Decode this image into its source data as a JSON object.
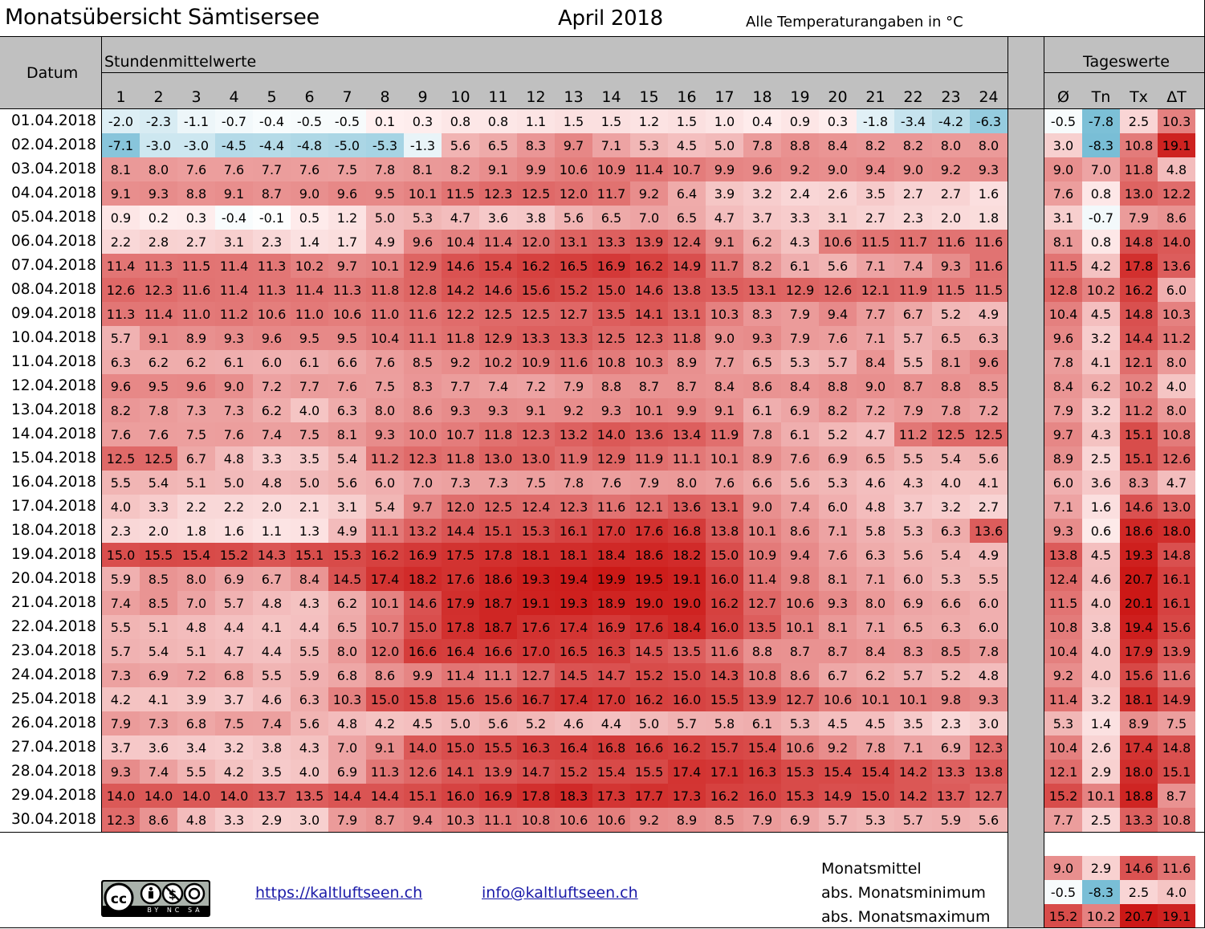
{
  "header": {
    "title": "Monatsübersicht Sämtisersee",
    "month": "April 2018",
    "units": "Alle Temperaturangaben in °C"
  },
  "columns": {
    "date_label": "Datum",
    "hourly_group": "Stundenmittelwerte",
    "daily_group": "Tageswerte",
    "hours": [
      "1",
      "2",
      "3",
      "4",
      "5",
      "6",
      "7",
      "8",
      "9",
      "10",
      "11",
      "12",
      "13",
      "14",
      "15",
      "16",
      "17",
      "18",
      "19",
      "20",
      "21",
      "22",
      "23",
      "24"
    ],
    "daily": [
      "Ø",
      "Tn",
      "Tx",
      "ΔT"
    ]
  },
  "rows": [
    {
      "date": "01.04.2018",
      "h": [
        "-2.0",
        "-2.3",
        "-1.1",
        "-0.7",
        "-0.4",
        "-0.5",
        "-0.5",
        "0.1",
        "0.3",
        "0.8",
        "0.8",
        "1.1",
        "1.5",
        "1.5",
        "1.2",
        "1.5",
        "1.0",
        "0.4",
        "0.9",
        "0.3",
        "-1.8",
        "-3.4",
        "-4.2",
        "-6.3"
      ],
      "d": [
        "-0.5",
        "-7.8",
        "2.5",
        "10.3"
      ]
    },
    {
      "date": "02.04.2018",
      "h": [
        "-7.1",
        "-3.0",
        "-3.0",
        "-4.5",
        "-4.4",
        "-4.8",
        "-5.0",
        "-5.3",
        "-1.3",
        "5.6",
        "6.5",
        "8.3",
        "9.7",
        "7.1",
        "5.3",
        "4.5",
        "5.0",
        "7.8",
        "8.8",
        "8.4",
        "8.2",
        "8.2",
        "8.0",
        "8.0"
      ],
      "d": [
        "3.0",
        "-8.3",
        "10.8",
        "19.1"
      ]
    },
    {
      "date": "03.04.2018",
      "h": [
        "8.1",
        "8.0",
        "7.6",
        "7.6",
        "7.7",
        "7.6",
        "7.5",
        "7.8",
        "8.1",
        "8.2",
        "9.1",
        "9.9",
        "10.6",
        "10.9",
        "11.4",
        "10.7",
        "9.9",
        "9.6",
        "9.2",
        "9.0",
        "9.4",
        "9.0",
        "9.2",
        "9.3"
      ],
      "d": [
        "9.0",
        "7.0",
        "11.8",
        "4.8"
      ]
    },
    {
      "date": "04.04.2018",
      "h": [
        "9.1",
        "9.3",
        "8.8",
        "9.1",
        "8.7",
        "9.0",
        "9.6",
        "9.5",
        "10.1",
        "11.5",
        "12.3",
        "12.5",
        "12.0",
        "11.7",
        "9.2",
        "6.4",
        "3.9",
        "3.2",
        "2.4",
        "2.6",
        "3.5",
        "2.7",
        "2.7",
        "1.6"
      ],
      "d": [
        "7.6",
        "0.8",
        "13.0",
        "12.2"
      ]
    },
    {
      "date": "05.04.2018",
      "h": [
        "0.9",
        "0.2",
        "0.3",
        "-0.4",
        "-0.1",
        "0.5",
        "1.2",
        "5.0",
        "5.3",
        "4.7",
        "3.6",
        "3.8",
        "5.6",
        "6.5",
        "7.0",
        "6.5",
        "4.7",
        "3.7",
        "3.3",
        "3.1",
        "2.7",
        "2.3",
        "2.0",
        "1.8"
      ],
      "d": [
        "3.1",
        "-0.7",
        "7.9",
        "8.6"
      ]
    },
    {
      "date": "06.04.2018",
      "h": [
        "2.2",
        "2.8",
        "2.7",
        "3.1",
        "2.3",
        "1.4",
        "1.7",
        "4.9",
        "9.6",
        "10.4",
        "11.4",
        "12.0",
        "13.1",
        "13.3",
        "13.9",
        "12.4",
        "9.1",
        "6.2",
        "4.3",
        "10.6",
        "11.5",
        "11.7",
        "11.6",
        "11.6"
      ],
      "d": [
        "8.1",
        "0.8",
        "14.8",
        "14.0"
      ]
    },
    {
      "date": "07.04.2018",
      "h": [
        "11.4",
        "11.3",
        "11.5",
        "11.4",
        "11.3",
        "10.2",
        "9.7",
        "10.1",
        "12.9",
        "14.6",
        "15.4",
        "16.2",
        "16.5",
        "16.9",
        "16.2",
        "14.9",
        "11.7",
        "8.2",
        "6.1",
        "5.6",
        "7.1",
        "7.4",
        "9.3",
        "11.6"
      ],
      "d": [
        "11.5",
        "4.2",
        "17.8",
        "13.6"
      ]
    },
    {
      "date": "08.04.2018",
      "h": [
        "12.6",
        "12.3",
        "11.6",
        "11.4",
        "11.3",
        "11.4",
        "11.3",
        "11.8",
        "12.8",
        "14.2",
        "14.6",
        "15.6",
        "15.2",
        "15.0",
        "14.6",
        "13.8",
        "13.5",
        "13.1",
        "12.9",
        "12.6",
        "12.1",
        "11.9",
        "11.5",
        "11.5"
      ],
      "d": [
        "12.8",
        "10.2",
        "16.2",
        "6.0"
      ]
    },
    {
      "date": "09.04.2018",
      "h": [
        "11.3",
        "11.4",
        "11.0",
        "11.2",
        "10.6",
        "11.0",
        "10.6",
        "11.0",
        "11.6",
        "12.2",
        "12.5",
        "12.5",
        "12.7",
        "13.5",
        "14.1",
        "13.1",
        "10.3",
        "8.3",
        "7.9",
        "9.4",
        "7.7",
        "6.7",
        "5.2",
        "4.9"
      ],
      "d": [
        "10.4",
        "4.5",
        "14.8",
        "10.3"
      ]
    },
    {
      "date": "10.04.2018",
      "h": [
        "5.7",
        "9.1",
        "8.9",
        "9.3",
        "9.6",
        "9.5",
        "9.5",
        "10.4",
        "11.1",
        "11.8",
        "12.9",
        "13.3",
        "13.3",
        "12.5",
        "12.3",
        "11.8",
        "9.0",
        "9.3",
        "7.9",
        "7.6",
        "7.1",
        "5.7",
        "6.5",
        "6.3"
      ],
      "d": [
        "9.6",
        "3.2",
        "14.4",
        "11.2"
      ]
    },
    {
      "date": "11.04.2018",
      "h": [
        "6.3",
        "6.2",
        "6.2",
        "6.1",
        "6.0",
        "6.1",
        "6.6",
        "7.6",
        "8.5",
        "9.2",
        "10.2",
        "10.9",
        "11.6",
        "10.8",
        "10.3",
        "8.9",
        "7.7",
        "6.5",
        "5.3",
        "5.7",
        "8.4",
        "5.5",
        "8.1",
        "9.6"
      ],
      "d": [
        "7.8",
        "4.1",
        "12.1",
        "8.0"
      ]
    },
    {
      "date": "12.04.2018",
      "h": [
        "9.6",
        "9.5",
        "9.6",
        "9.0",
        "7.2",
        "7.7",
        "7.6",
        "7.5",
        "8.3",
        "7.7",
        "7.4",
        "7.2",
        "7.9",
        "8.8",
        "8.7",
        "8.7",
        "8.4",
        "8.6",
        "8.4",
        "8.8",
        "9.0",
        "8.7",
        "8.8",
        "8.5"
      ],
      "d": [
        "8.4",
        "6.2",
        "10.2",
        "4.0"
      ]
    },
    {
      "date": "13.04.2018",
      "h": [
        "8.2",
        "7.8",
        "7.3",
        "7.3",
        "6.2",
        "4.0",
        "6.3",
        "8.0",
        "8.6",
        "9.3",
        "9.3",
        "9.1",
        "9.2",
        "9.3",
        "10.1",
        "9.9",
        "9.1",
        "6.1",
        "6.9",
        "8.2",
        "7.2",
        "7.9",
        "7.8",
        "7.2"
      ],
      "d": [
        "7.9",
        "3.2",
        "11.2",
        "8.0"
      ]
    },
    {
      "date": "14.04.2018",
      "h": [
        "7.6",
        "7.6",
        "7.5",
        "7.6",
        "7.4",
        "7.5",
        "8.1",
        "9.3",
        "10.0",
        "10.7",
        "11.8",
        "12.3",
        "13.2",
        "14.0",
        "13.6",
        "13.4",
        "11.9",
        "7.8",
        "6.1",
        "5.2",
        "4.7",
        "11.2",
        "12.5",
        "12.5"
      ],
      "d": [
        "9.7",
        "4.3",
        "15.1",
        "10.8"
      ]
    },
    {
      "date": "15.04.2018",
      "h": [
        "12.5",
        "12.5",
        "6.7",
        "4.8",
        "3.3",
        "3.5",
        "5.4",
        "11.2",
        "12.3",
        "11.8",
        "13.0",
        "13.0",
        "11.9",
        "12.9",
        "11.9",
        "11.1",
        "10.1",
        "8.9",
        "7.6",
        "6.9",
        "6.5",
        "5.5",
        "5.4",
        "5.6"
      ],
      "d": [
        "8.9",
        "2.5",
        "15.1",
        "12.6"
      ]
    },
    {
      "date": "16.04.2018",
      "h": [
        "5.5",
        "5.4",
        "5.1",
        "5.0",
        "4.8",
        "5.0",
        "5.6",
        "6.0",
        "7.0",
        "7.3",
        "7.3",
        "7.5",
        "7.8",
        "7.6",
        "7.9",
        "8.0",
        "7.6",
        "6.6",
        "5.6",
        "5.3",
        "4.6",
        "4.3",
        "4.0",
        "4.1"
      ],
      "d": [
        "6.0",
        "3.6",
        "8.3",
        "4.7"
      ]
    },
    {
      "date": "17.04.2018",
      "h": [
        "4.0",
        "3.3",
        "2.2",
        "2.2",
        "2.0",
        "2.1",
        "3.1",
        "5.4",
        "9.7",
        "12.0",
        "12.5",
        "12.4",
        "12.3",
        "11.6",
        "12.1",
        "13.6",
        "13.1",
        "9.0",
        "7.4",
        "6.0",
        "4.8",
        "3.7",
        "3.2",
        "2.7"
      ],
      "d": [
        "7.1",
        "1.6",
        "14.6",
        "13.0"
      ]
    },
    {
      "date": "18.04.2018",
      "h": [
        "2.3",
        "2.0",
        "1.8",
        "1.6",
        "1.1",
        "1.3",
        "4.9",
        "11.1",
        "13.2",
        "14.4",
        "15.1",
        "15.3",
        "16.1",
        "17.0",
        "17.6",
        "16.8",
        "13.8",
        "10.1",
        "8.6",
        "7.1",
        "5.8",
        "5.3",
        "6.3",
        "13.6"
      ],
      "d": [
        "9.3",
        "0.6",
        "18.6",
        "18.0"
      ]
    },
    {
      "date": "19.04.2018",
      "h": [
        "15.0",
        "15.5",
        "15.4",
        "15.2",
        "14.3",
        "15.1",
        "15.3",
        "16.2",
        "16.9",
        "17.5",
        "17.8",
        "18.1",
        "18.1",
        "18.4",
        "18.6",
        "18.2",
        "15.0",
        "10.9",
        "9.4",
        "7.6",
        "6.3",
        "5.6",
        "5.4",
        "4.9"
      ],
      "d": [
        "13.8",
        "4.5",
        "19.3",
        "14.8"
      ]
    },
    {
      "date": "20.04.2018",
      "h": [
        "5.9",
        "8.5",
        "8.0",
        "6.9",
        "6.7",
        "8.4",
        "14.5",
        "17.4",
        "18.2",
        "17.6",
        "18.6",
        "19.3",
        "19.4",
        "19.9",
        "19.5",
        "19.1",
        "16.0",
        "11.4",
        "9.8",
        "8.1",
        "7.1",
        "6.0",
        "5.3",
        "5.5"
      ],
      "d": [
        "12.4",
        "4.6",
        "20.7",
        "16.1"
      ]
    },
    {
      "date": "21.04.2018",
      "h": [
        "7.4",
        "8.5",
        "7.0",
        "5.7",
        "4.8",
        "4.3",
        "6.2",
        "10.1",
        "14.6",
        "17.9",
        "18.7",
        "19.1",
        "19.3",
        "18.9",
        "19.0",
        "19.0",
        "16.2",
        "12.7",
        "10.6",
        "9.3",
        "8.0",
        "6.9",
        "6.6",
        "6.0"
      ],
      "d": [
        "11.5",
        "4.0",
        "20.1",
        "16.1"
      ]
    },
    {
      "date": "22.04.2018",
      "h": [
        "5.5",
        "5.1",
        "4.8",
        "4.4",
        "4.1",
        "4.4",
        "6.5",
        "10.7",
        "15.0",
        "17.8",
        "18.7",
        "17.6",
        "17.4",
        "16.9",
        "17.6",
        "18.4",
        "16.0",
        "13.5",
        "10.1",
        "8.1",
        "7.1",
        "6.5",
        "6.3",
        "6.0"
      ],
      "d": [
        "10.8",
        "3.8",
        "19.4",
        "15.6"
      ]
    },
    {
      "date": "23.04.2018",
      "h": [
        "5.7",
        "5.4",
        "5.1",
        "4.7",
        "4.4",
        "5.5",
        "8.0",
        "12.0",
        "16.6",
        "16.4",
        "16.6",
        "17.0",
        "16.5",
        "16.3",
        "14.5",
        "13.5",
        "11.6",
        "8.8",
        "8.7",
        "8.7",
        "8.4",
        "8.3",
        "8.5",
        "7.8"
      ],
      "d": [
        "10.4",
        "4.0",
        "17.9",
        "13.9"
      ]
    },
    {
      "date": "24.04.2018",
      "h": [
        "7.3",
        "6.9",
        "7.2",
        "6.8",
        "5.5",
        "5.9",
        "6.8",
        "8.6",
        "9.9",
        "11.4",
        "11.1",
        "12.7",
        "14.5",
        "14.7",
        "15.2",
        "15.0",
        "14.3",
        "10.8",
        "8.6",
        "6.7",
        "6.2",
        "5.7",
        "5.2",
        "4.8"
      ],
      "d": [
        "9.2",
        "4.0",
        "15.6",
        "11.6"
      ]
    },
    {
      "date": "25.04.2018",
      "h": [
        "4.2",
        "4.1",
        "3.9",
        "3.7",
        "4.6",
        "6.3",
        "10.3",
        "15.0",
        "15.8",
        "15.6",
        "15.6",
        "16.7",
        "17.4",
        "17.0",
        "16.2",
        "16.0",
        "15.5",
        "13.9",
        "12.7",
        "10.6",
        "10.1",
        "10.1",
        "9.8",
        "9.3"
      ],
      "d": [
        "11.4",
        "3.2",
        "18.1",
        "14.9"
      ]
    },
    {
      "date": "26.04.2018",
      "h": [
        "7.9",
        "7.3",
        "6.8",
        "7.5",
        "7.4",
        "5.6",
        "4.8",
        "4.2",
        "4.5",
        "5.0",
        "5.6",
        "5.2",
        "4.6",
        "4.4",
        "5.0",
        "5.7",
        "5.8",
        "6.1",
        "5.3",
        "4.5",
        "4.5",
        "3.5",
        "2.3",
        "3.0"
      ],
      "d": [
        "5.3",
        "1.4",
        "8.9",
        "7.5"
      ]
    },
    {
      "date": "27.04.2018",
      "h": [
        "3.7",
        "3.6",
        "3.4",
        "3.2",
        "3.8",
        "4.3",
        "7.0",
        "9.1",
        "14.0",
        "15.0",
        "15.5",
        "16.3",
        "16.4",
        "16.8",
        "16.6",
        "16.2",
        "15.7",
        "15.4",
        "10.6",
        "9.2",
        "7.8",
        "7.1",
        "6.9",
        "12.3"
      ],
      "d": [
        "10.4",
        "2.6",
        "17.4",
        "14.8"
      ]
    },
    {
      "date": "28.04.2018",
      "h": [
        "9.3",
        "7.4",
        "5.5",
        "4.2",
        "3.5",
        "4.0",
        "6.9",
        "11.3",
        "12.6",
        "14.1",
        "13.9",
        "14.7",
        "15.2",
        "15.4",
        "15.5",
        "17.4",
        "17.1",
        "16.3",
        "15.3",
        "15.4",
        "15.4",
        "14.2",
        "13.3",
        "13.8"
      ],
      "d": [
        "12.1",
        "2.9",
        "18.0",
        "15.1"
      ]
    },
    {
      "date": "29.04.2018",
      "h": [
        "14.0",
        "14.0",
        "14.0",
        "14.0",
        "13.7",
        "13.5",
        "14.4",
        "14.4",
        "15.1",
        "16.0",
        "16.9",
        "17.8",
        "18.3",
        "17.3",
        "17.7",
        "17.3",
        "16.2",
        "16.0",
        "15.3",
        "14.9",
        "15.0",
        "14.2",
        "13.7",
        "12.7"
      ],
      "d": [
        "15.2",
        "10.1",
        "18.8",
        "8.7"
      ]
    },
    {
      "date": "30.04.2018",
      "h": [
        "12.3",
        "8.6",
        "4.8",
        "3.3",
        "2.9",
        "3.0",
        "7.9",
        "8.7",
        "9.4",
        "10.3",
        "11.1",
        "10.8",
        "10.6",
        "10.6",
        "9.2",
        "8.9",
        "8.5",
        "7.9",
        "6.9",
        "5.7",
        "5.3",
        "5.7",
        "5.9",
        "5.6"
      ],
      "d": [
        "7.7",
        "2.5",
        "13.3",
        "10.8"
      ]
    }
  ],
  "summary": [
    {
      "label": "Monatsmittel",
      "values": [
        "9.0",
        "2.9",
        "14.6",
        "11.6"
      ]
    },
    {
      "label": "abs. Monatsminimum",
      "values": [
        "-0.5",
        "-8.3",
        "2.5",
        "4.0"
      ]
    },
    {
      "label": "abs. Monatsmaximum",
      "values": [
        "15.2",
        "10.2",
        "20.7",
        "19.1"
      ]
    }
  ],
  "footer": {
    "url": "https://kaltluftseen.ch",
    "email": "info@kaltluftseen.ch",
    "license_badge": "cc-by-nc-sa-icon",
    "license_text": "BY NC SA"
  }
}
